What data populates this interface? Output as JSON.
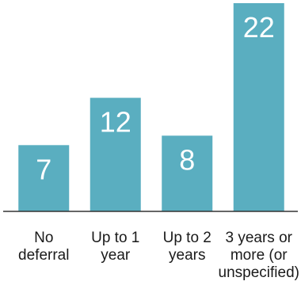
{
  "chart_data": {
    "type": "bar",
    "categories": [
      [
        "No",
        "deferral"
      ],
      [
        "Up to 1",
        "year"
      ],
      [
        "Up to 2",
        "years"
      ],
      [
        "3 years or",
        "more (or",
        "unspecified)"
      ]
    ],
    "values": [
      7,
      12,
      8,
      22
    ],
    "ylim": [
      0,
      22
    ],
    "grid": false,
    "bar_color": "#5aaec0",
    "axis_color": "#333333",
    "label_color": "#1a1a1a",
    "value_label_color": "#ffffff"
  }
}
